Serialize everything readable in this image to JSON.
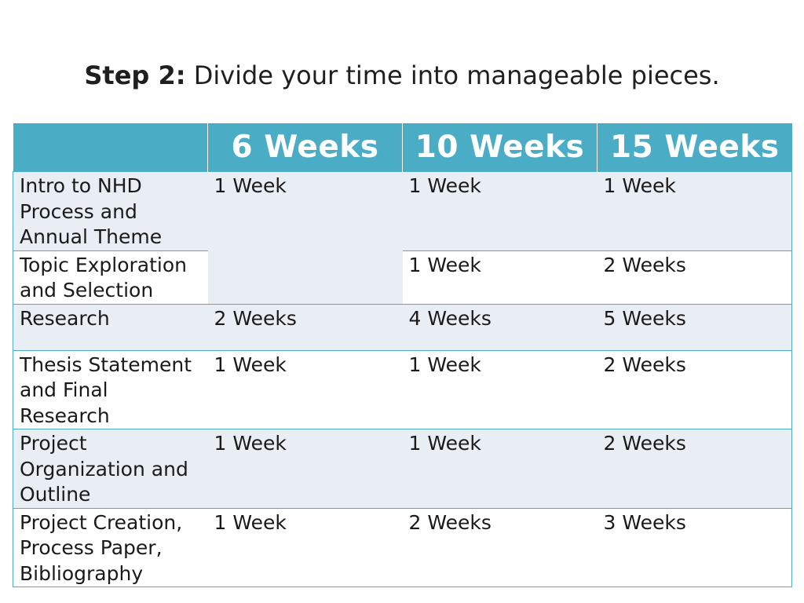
{
  "title": {
    "step_label": "Step 2:",
    "text": "Divide your time into manageable pieces."
  },
  "table": {
    "headers": [
      "",
      "6 Weeks",
      "10 Weeks",
      "15 Weeks"
    ],
    "rows": [
      {
        "phase": "Intro to NHD Process and Annual Theme",
        "w6": "1 Week",
        "w10": "1 Week",
        "w15": "1 Week"
      },
      {
        "phase": "Topic Exploration and Selection",
        "w6": "",
        "w10": "1 Week",
        "w15": "2 Weeks"
      },
      {
        "phase": "Research",
        "w6": "2 Weeks",
        "w10": "4 Weeks",
        "w15": "5 Weeks"
      },
      {
        "phase": "Thesis Statement and Final Research",
        "w6": "1 Week",
        "w10": "1 Week",
        "w15": "2 Weeks"
      },
      {
        "phase": "Project Organization and Outline",
        "w6": "1 Week",
        "w10": "1 Week",
        "w15": "2 Weeks"
      },
      {
        "phase": "Project Creation, Process Paper, Bibliography",
        "w6": "1 Week",
        "w10": "2 Weeks",
        "w15": "3 Weeks"
      }
    ]
  },
  "colors": {
    "header_bg": "#4bacc6",
    "band_light": "#e9eef5",
    "band_white": "#ffffff",
    "border": "#4bacc6"
  }
}
